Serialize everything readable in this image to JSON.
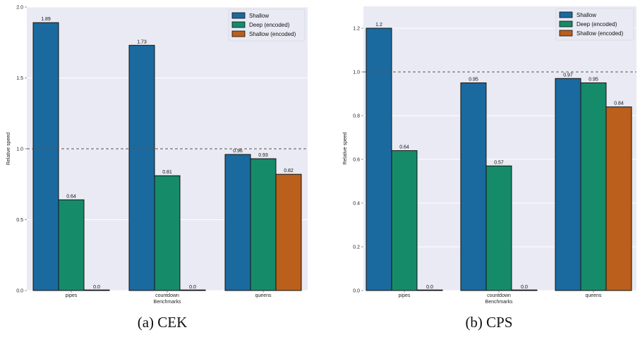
{
  "charts": [
    {
      "caption": "(a) CEK",
      "chart_data": {
        "type": "bar",
        "categories": [
          "pipes",
          "countdown",
          "queens"
        ],
        "series": [
          {
            "name": "Shallow",
            "color": "#1a6aa0",
            "values": [
              1.89,
              1.73,
              0.96
            ],
            "labels": [
              "1.89",
              "1.73",
              "0.96"
            ]
          },
          {
            "name": "Deep (encoded)",
            "color": "#168b6a",
            "values": [
              0.64,
              0.81,
              0.93
            ],
            "labels": [
              "0.64",
              "0.81",
              "0.93"
            ]
          },
          {
            "name": "Shallow (encoded)",
            "color": "#ba5f1c",
            "values": [
              0.0,
              0.0,
              0.82
            ],
            "labels": [
              "0.0",
              "0.0",
              "0.82"
            ]
          }
        ],
        "xlabel": "Benchmarks",
        "ylabel": "Relative speed",
        "ylim": [
          0,
          2.0
        ],
        "yticks": [
          0.0,
          0.5,
          1.0,
          1.5,
          2.0
        ],
        "ytick_labels": [
          "0.0",
          "0.5",
          "1.0",
          "1.5",
          "2.0"
        ],
        "reference_line": 1.0,
        "grid": true,
        "legend_position": "top-right",
        "background": "#e9eaf3"
      }
    },
    {
      "caption": "(b) CPS",
      "chart_data": {
        "type": "bar",
        "categories": [
          "pipes",
          "countdown",
          "queens"
        ],
        "series": [
          {
            "name": "Shallow",
            "color": "#1a6aa0",
            "values": [
              1.2,
              0.95,
              0.97
            ],
            "labels": [
              "1.2",
              "0.95",
              "0.97"
            ]
          },
          {
            "name": "Deep (encoded)",
            "color": "#168b6a",
            "values": [
              0.64,
              0.57,
              0.95
            ],
            "labels": [
              "0.64",
              "0.57",
              "0.95"
            ]
          },
          {
            "name": "Shallow (encoded)",
            "color": "#ba5f1c",
            "values": [
              0.0,
              0.0,
              0.84
            ],
            "labels": [
              "0.0",
              "0.0",
              "0.84"
            ]
          }
        ],
        "xlabel": "Benchmarks",
        "ylabel": "Relative speed",
        "ylim": [
          0,
          1.3
        ],
        "yticks": [
          0.0,
          0.2,
          0.4,
          0.6,
          0.8,
          1.0,
          1.2
        ],
        "ytick_labels": [
          "0.0",
          "0.2",
          "0.4",
          "0.6",
          "0.8",
          "1.0",
          "1.2"
        ],
        "reference_line": 1.0,
        "grid": true,
        "legend_position": "top-right",
        "background": "#e9eaf3"
      }
    }
  ]
}
